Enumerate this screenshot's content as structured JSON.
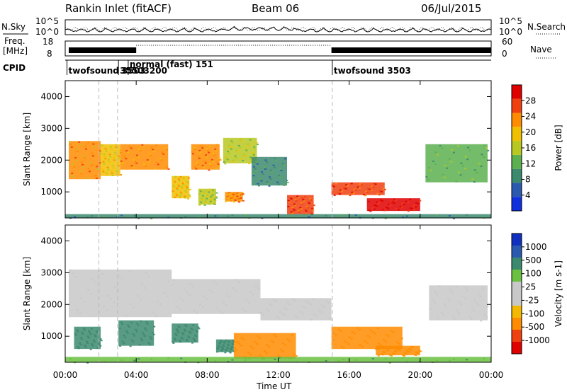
{
  "header": {
    "title": "Rankin Inlet (fitACF)",
    "beam": "Beam 06",
    "date": "06/Jul/2015"
  },
  "top_panels": {
    "sky_label": "N.Sky",
    "search_label": "N.Search",
    "sky_ticks": [
      "10^5",
      "10^0"
    ],
    "search_ticks": [
      "10^5",
      "10^0"
    ],
    "freq_label_1": "Freq.",
    "freq_label_2": "[MHz]",
    "freq_ticks": [
      "18",
      "8"
    ],
    "nave_label": "Nave",
    "nave_ticks": [
      "60",
      "0"
    ],
    "cpid_label": "CPID",
    "cpid_entries": [
      {
        "text": "twofsound 3503",
        "time_h": 0.1,
        "row": 1
      },
      {
        "text": "normal (fast) 151",
        "time_h": 3.55,
        "row": 0
      },
      {
        "text": "35503200",
        "time_h": 3.0,
        "row": 1
      },
      {
        "text": "twofsound 3503",
        "time_h": 15.05,
        "row": 1
      }
    ]
  },
  "colors": {
    "power_scale": [
      "#1030e0",
      "#2a5ab0",
      "#3c8a6e",
      "#5cb050",
      "#b8c820",
      "#f0c000",
      "#ff8c00",
      "#f04010",
      "#e00000"
    ],
    "velocity_scale": [
      "#e00000",
      "#f04010",
      "#ff8c00",
      "#f5b800",
      "#c8c8c8",
      "#c8c8c8",
      "#6ac040",
      "#3c8a6e",
      "#2a5ab0",
      "#1030c0"
    ],
    "ground_scatter": "#c8c8c8"
  },
  "chart_data": [
    {
      "type": "heatmap",
      "panel": "power",
      "xlabel": "Time UT",
      "ylabel": "Slant Range [km]",
      "colorbar_label": "Power [dB]",
      "xlim_hours": [
        0,
        24
      ],
      "ylim_km": [
        180,
        4500
      ],
      "x_ticks": [
        "00:00",
        "04:00",
        "08:00",
        "12:00",
        "16:00",
        "20:00",
        "00:00"
      ],
      "y_ticks": [
        1000,
        2000,
        3000,
        4000
      ],
      "colorbar_ticks": [
        4,
        8,
        12,
        16,
        20,
        24,
        28
      ],
      "colorbar_range": [
        0,
        30
      ],
      "dashed_lines_hours": [
        1.9,
        2.95,
        15.05
      ],
      "regions": [
        {
          "t0": 0.2,
          "t1": 2.0,
          "r0": 1400,
          "r1": 2600,
          "value": 20
        },
        {
          "t0": 2.0,
          "t1": 3.1,
          "r0": 1500,
          "r1": 2500,
          "value": 18
        },
        {
          "t0": 3.1,
          "t1": 5.8,
          "r0": 1700,
          "r1": 2500,
          "value": 22
        },
        {
          "t0": 6.0,
          "t1": 7.0,
          "r0": 800,
          "r1": 1500,
          "value": 18
        },
        {
          "t0": 7.1,
          "t1": 8.7,
          "r0": 1700,
          "r1": 2500,
          "value": 22
        },
        {
          "t0": 7.5,
          "t1": 8.5,
          "r0": 600,
          "r1": 1100,
          "value": 14
        },
        {
          "t0": 8.9,
          "t1": 10.8,
          "r0": 1900,
          "r1": 2700,
          "value": 14
        },
        {
          "t0": 9.0,
          "t1": 10.0,
          "r0": 700,
          "r1": 1000,
          "value": 22
        },
        {
          "t0": 10.5,
          "t1": 12.5,
          "r0": 1200,
          "r1": 2100,
          "value": 8
        },
        {
          "t0": 12.5,
          "t1": 14.0,
          "r0": 300,
          "r1": 900,
          "value": 24
        },
        {
          "t0": 15.0,
          "t1": 18.0,
          "r0": 900,
          "r1": 1300,
          "value": 24
        },
        {
          "t0": 17.0,
          "t1": 20.0,
          "r0": 400,
          "r1": 800,
          "value": 28
        },
        {
          "t0": 20.3,
          "t1": 23.8,
          "r0": 1300,
          "r1": 2500,
          "value": 12
        },
        {
          "t0": 0.0,
          "t1": 24.0,
          "r0": 180,
          "r1": 300,
          "value": 8
        }
      ]
    },
    {
      "type": "heatmap",
      "panel": "velocity",
      "xlabel": "Time UT",
      "ylabel": "Slant Range [km]",
      "colorbar_label": "Velocity [m s-1]",
      "xlim_hours": [
        0,
        24
      ],
      "ylim_km": [
        180,
        4500
      ],
      "x_ticks": [
        "00:00",
        "04:00",
        "08:00",
        "12:00",
        "16:00",
        "20:00",
        "00:00"
      ],
      "y_ticks": [
        1000,
        2000,
        3000,
        4000
      ],
      "colorbar_ticks": [
        "-1000",
        "-500",
        "-100",
        "-25",
        "25",
        "100",
        "500",
        "1000"
      ],
      "dashed_lines_hours": [
        1.9,
        2.95,
        15.05
      ],
      "regions": [
        {
          "t0": 0.2,
          "t1": 6.0,
          "r0": 1600,
          "r1": 3100,
          "value": 0
        },
        {
          "t0": 6.0,
          "t1": 11.0,
          "r0": 1700,
          "r1": 2800,
          "value": 0
        },
        {
          "t0": 11.0,
          "t1": 15.0,
          "r0": 1500,
          "r1": 2200,
          "value": 0
        },
        {
          "t0": 20.5,
          "t1": 23.8,
          "r0": 1500,
          "r1": 2600,
          "value": 0
        },
        {
          "t0": 0.5,
          "t1": 2.0,
          "r0": 600,
          "r1": 1300,
          "value": 300
        },
        {
          "t0": 3.0,
          "t1": 5.0,
          "r0": 700,
          "r1": 1500,
          "value": 300
        },
        {
          "t0": 6.0,
          "t1": 7.5,
          "r0": 800,
          "r1": 1400,
          "value": 300
        },
        {
          "t0": 8.5,
          "t1": 9.5,
          "r0": 500,
          "r1": 900,
          "value": 150
        },
        {
          "t0": 9.5,
          "t1": 13.0,
          "r0": 300,
          "r1": 1100,
          "value": -200
        },
        {
          "t0": 15.0,
          "t1": 19.0,
          "r0": 600,
          "r1": 1300,
          "value": -300
        },
        {
          "t0": 17.5,
          "t1": 20.0,
          "r0": 400,
          "r1": 700,
          "value": -300
        },
        {
          "t0": 0.0,
          "t1": 24.0,
          "r0": 180,
          "r1": 350,
          "value": 100
        }
      ]
    }
  ]
}
